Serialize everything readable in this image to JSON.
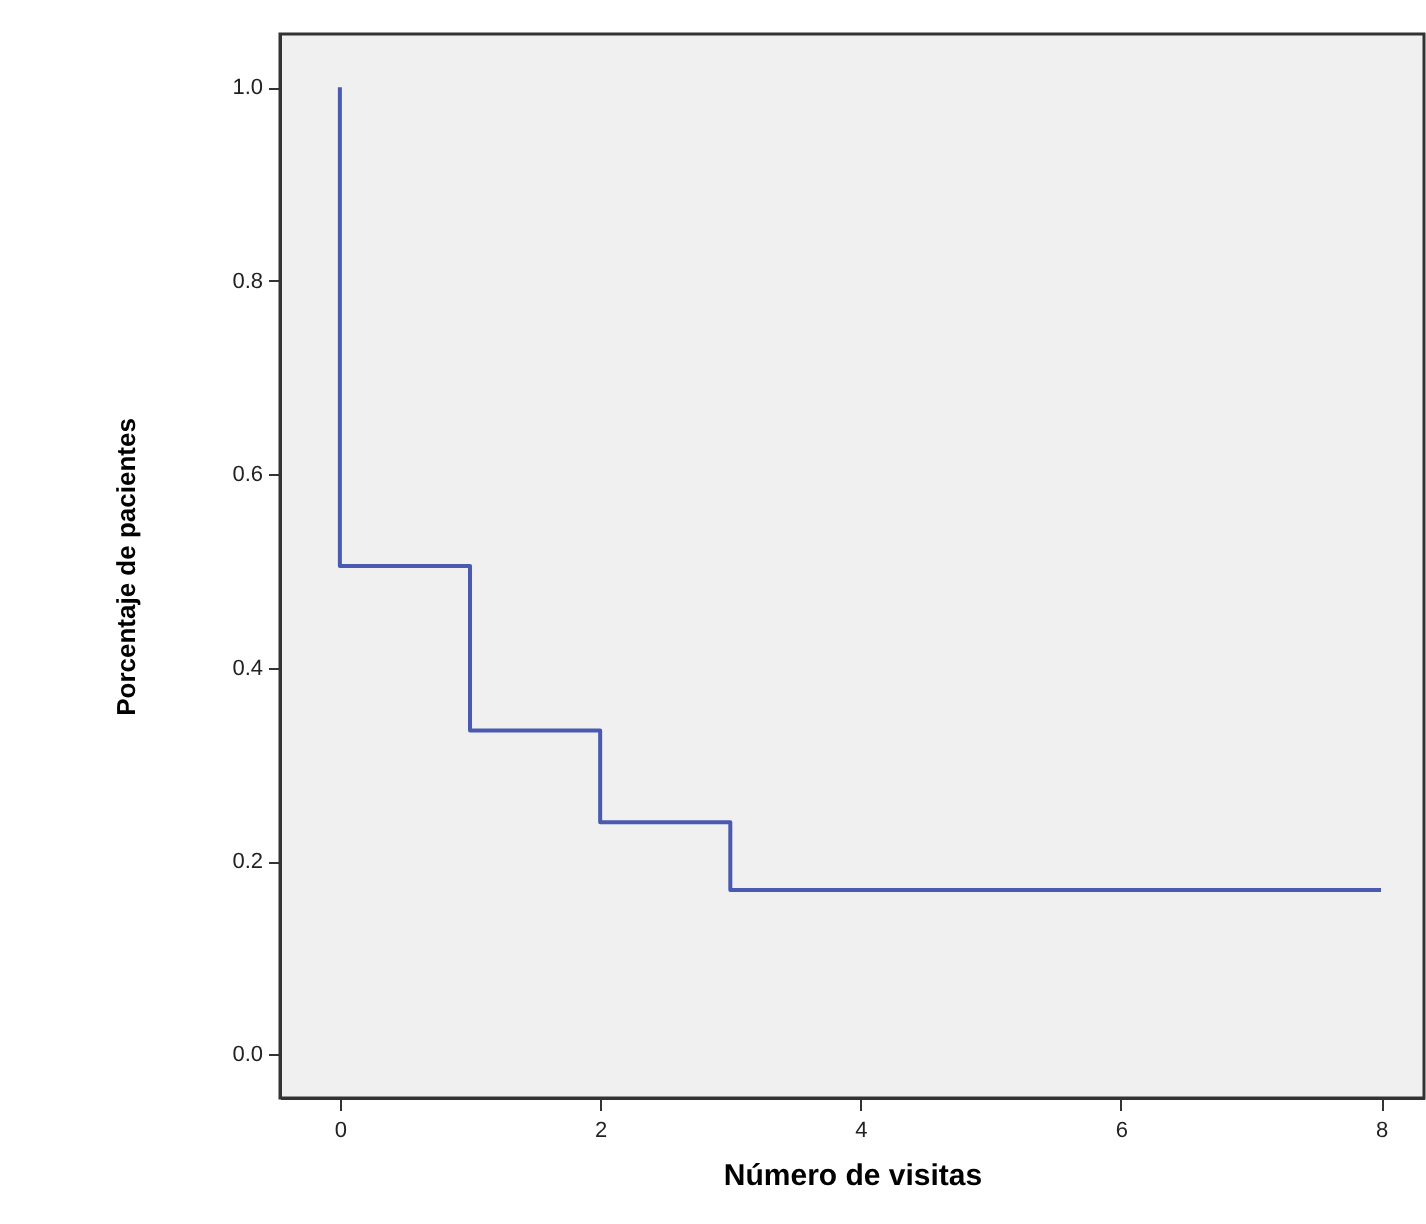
{
  "chart_data": {
    "type": "step",
    "xlabel": "Número de visitas",
    "ylabel": "Porcentaje de pacientes",
    "x": [
      0,
      0,
      1,
      2,
      3,
      4,
      5,
      6,
      7,
      8
    ],
    "series": [
      {
        "color": "#4a5ab0",
        "values": [
          1.0,
          0.505,
          0.335,
          0.24,
          0.17,
          0.17,
          0.17,
          0.17,
          0.17,
          0.17
        ]
      }
    ],
    "xlim": [
      -0.46,
      8.33
    ],
    "xticks": [
      0,
      2,
      4,
      6,
      8
    ],
    "ylim": [
      -0.045,
      1.055
    ],
    "yticks": [
      {
        "value": 0,
        "label": "0.0"
      },
      {
        "value": 0.2,
        "label": "0.2"
      },
      {
        "value": 0.4,
        "label": "0.4"
      },
      {
        "value": 0.6,
        "label": "0.6"
      },
      {
        "value": 0.8,
        "label": "0.8"
      },
      {
        "value": 1,
        "label": "1.0"
      }
    ],
    "grid": false
  }
}
